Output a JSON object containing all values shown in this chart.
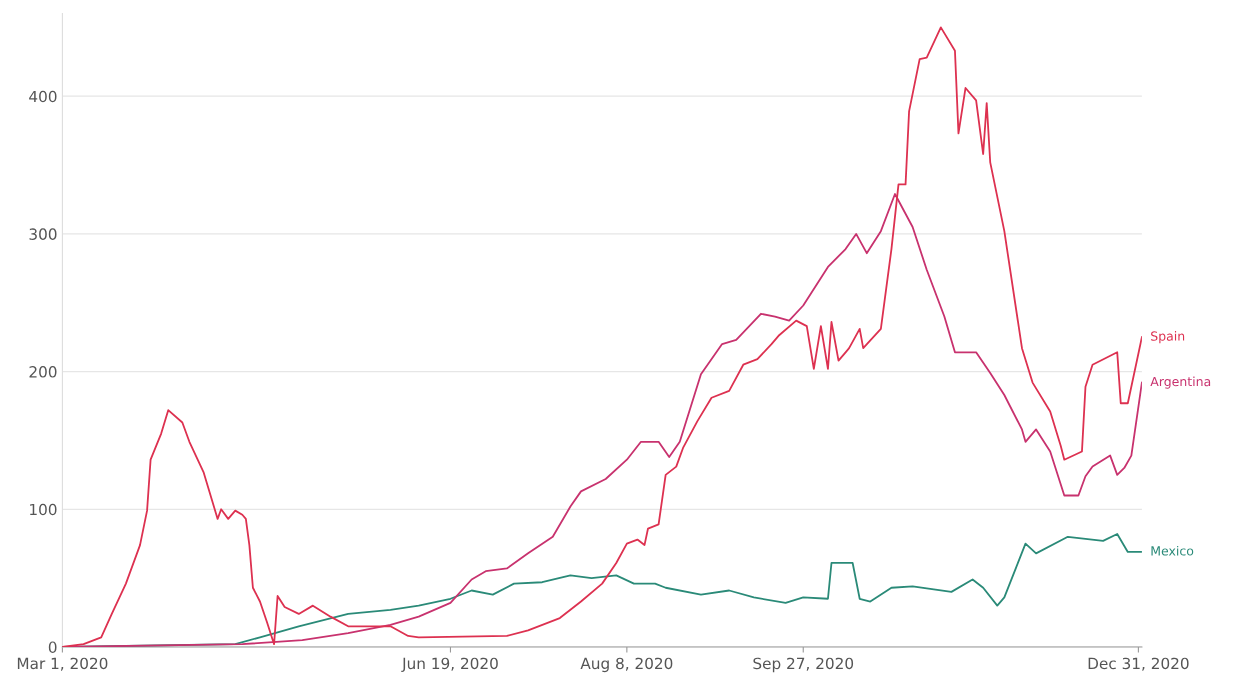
{
  "chart_data": {
    "type": "line",
    "xlim": [
      "2020-03-01",
      "2021-01-01"
    ],
    "ylim": [
      0,
      460
    ],
    "xticks": [
      {
        "value": "2020-03-01",
        "label": "Mar 1, 2020"
      },
      {
        "value": "2020-06-19",
        "label": "Jun 19, 2020"
      },
      {
        "value": "2020-08-08",
        "label": "Aug 8, 2020"
      },
      {
        "value": "2020-09-27",
        "label": "Sep 27, 2020"
      },
      {
        "value": "2020-12-31",
        "label": "Dec 31, 2020"
      }
    ],
    "yticks": [
      0,
      100,
      200,
      300,
      400
    ],
    "grid": "y",
    "legend": false,
    "marker": "none",
    "line_style": "solid",
    "series": [
      {
        "name": "Mexico",
        "color": "#2a8a78",
        "x": [
          "2020-03-01",
          "2020-04-19",
          "2020-04-26",
          "2020-05-07",
          "2020-05-21",
          "2020-06-02",
          "2020-06-10",
          "2020-06-19",
          "2020-06-25",
          "2020-07-01",
          "2020-07-07",
          "2020-07-15",
          "2020-07-23",
          "2020-07-29",
          "2020-08-05",
          "2020-08-10",
          "2020-08-16",
          "2020-08-19",
          "2020-08-29",
          "2020-09-06",
          "2020-09-13",
          "2020-09-22",
          "2020-09-27",
          "2020-10-04",
          "2020-10-05",
          "2020-10-11",
          "2020-10-13",
          "2020-10-16",
          "2020-10-22",
          "2020-10-28",
          "2020-11-08",
          "2020-11-14",
          "2020-11-17",
          "2020-11-21",
          "2020-11-23",
          "2020-11-29",
          "2020-12-02",
          "2020-12-11",
          "2020-12-21",
          "2020-12-25",
          "2020-12-28",
          "2021-01-01"
        ],
        "values": [
          0,
          2,
          7,
          15,
          24,
          27,
          30,
          35,
          41,
          38,
          46,
          47,
          52,
          50,
          52,
          46,
          46,
          43,
          38,
          41,
          36,
          32,
          36,
          35,
          61,
          61,
          35,
          33,
          43,
          44,
          40,
          49,
          43,
          30,
          36,
          75,
          68,
          80,
          77,
          82,
          69,
          69
        ]
      },
      {
        "name": "Argentina",
        "color": "#c8326e",
        "x": [
          "2020-03-01",
          "2020-04-21",
          "2020-05-08",
          "2020-05-21",
          "2020-06-02",
          "2020-06-10",
          "2020-06-19",
          "2020-06-25",
          "2020-06-29",
          "2020-07-05",
          "2020-07-11",
          "2020-07-18",
          "2020-07-23",
          "2020-07-26",
          "2020-08-02",
          "2020-08-08",
          "2020-08-12",
          "2020-08-17",
          "2020-08-20",
          "2020-08-23",
          "2020-08-29",
          "2020-09-04",
          "2020-09-08",
          "2020-09-15",
          "2020-09-19",
          "2020-09-23",
          "2020-09-27",
          "2020-10-04",
          "2020-10-09",
          "2020-10-12",
          "2020-10-15",
          "2020-10-19",
          "2020-10-23",
          "2020-10-28",
          "2020-11-01",
          "2020-11-06",
          "2020-11-09",
          "2020-11-15",
          "2020-11-19",
          "2020-11-23",
          "2020-11-28",
          "2020-11-29",
          "2020-12-02",
          "2020-12-06",
          "2020-12-10",
          "2020-12-14",
          "2020-12-16",
          "2020-12-18",
          "2020-12-23",
          "2020-12-25",
          "2020-12-27",
          "2020-12-29",
          "2021-01-01"
        ],
        "values": [
          0,
          2,
          5,
          10,
          16,
          22,
          32,
          49,
          55,
          57,
          68,
          80,
          102,
          113,
          122,
          136,
          149,
          149,
          138,
          149,
          198,
          220,
          223,
          242,
          240,
          237,
          248,
          276,
          289,
          300,
          286,
          302,
          329,
          305,
          274,
          240,
          214,
          214,
          199,
          183,
          158,
          149,
          158,
          142,
          110,
          110,
          124,
          131,
          139,
          125,
          130,
          139,
          192
        ]
      },
      {
        "name": "Spain",
        "color": "#dd3150",
        "x": [
          "2020-03-01",
          "2020-03-07",
          "2020-03-12",
          "2020-03-15",
          "2020-03-19",
          "2020-03-23",
          "2020-03-25",
          "2020-03-26",
          "2020-03-29",
          "2020-03-31",
          "2020-04-04",
          "2020-04-06",
          "2020-04-10",
          "2020-04-14",
          "2020-04-15",
          "2020-04-17",
          "2020-04-19",
          "2020-04-21",
          "2020-04-22",
          "2020-04-23",
          "2020-04-24",
          "2020-04-26",
          "2020-04-28",
          "2020-04-30",
          "2020-05-01",
          "2020-05-03",
          "2020-05-07",
          "2020-05-11",
          "2020-05-16",
          "2020-05-21",
          "2020-05-24",
          "2020-06-02",
          "2020-06-07",
          "2020-06-10",
          "2020-07-05",
          "2020-07-11",
          "2020-07-20",
          "2020-07-26",
          "2020-08-01",
          "2020-08-05",
          "2020-08-08",
          "2020-08-11",
          "2020-08-13",
          "2020-08-14",
          "2020-08-17",
          "2020-08-19",
          "2020-08-22",
          "2020-08-24",
          "2020-08-28",
          "2020-09-01",
          "2020-09-06",
          "2020-09-10",
          "2020-09-14",
          "2020-09-18",
          "2020-09-20",
          "2020-09-25",
          "2020-09-28",
          "2020-09-30",
          "2020-10-02",
          "2020-10-04",
          "2020-10-05",
          "2020-10-07",
          "2020-10-09",
          "2020-10-10",
          "2020-10-13",
          "2020-10-14",
          "2020-10-19",
          "2020-10-22",
          "2020-10-24",
          "2020-10-26",
          "2020-10-27",
          "2020-10-30",
          "2020-11-01",
          "2020-11-05",
          "2020-11-09",
          "2020-11-10",
          "2020-11-12",
          "2020-11-15",
          "2020-11-17",
          "2020-11-18",
          "2020-11-19",
          "2020-11-23",
          "2020-11-28",
          "2020-12-01",
          "2020-12-06",
          "2020-12-09",
          "2020-12-10",
          "2020-12-15",
          "2020-12-16",
          "2020-12-18",
          "2020-12-25",
          "2020-12-26",
          "2020-12-28",
          "2021-01-01"
        ],
        "values": [
          0,
          2,
          7,
          24,
          46,
          74,
          99,
          136,
          155,
          172,
          163,
          149,
          127,
          93,
          100,
          93,
          99,
          96,
          93,
          74,
          43,
          33,
          18,
          2,
          37,
          29,
          24,
          30,
          22,
          15,
          15,
          15,
          8,
          7,
          8,
          12,
          21,
          33,
          46,
          61,
          75,
          78,
          74,
          86,
          89,
          125,
          131,
          145,
          164,
          181,
          186,
          205,
          209,
          220,
          226,
          237,
          233,
          202,
          233,
          202,
          236,
          208,
          214,
          217,
          231,
          217,
          231,
          289,
          336,
          336,
          389,
          427,
          428,
          450,
          433,
          373,
          406,
          397,
          358,
          395,
          352,
          302,
          217,
          192,
          171,
          146,
          136,
          142,
          189,
          205,
          214,
          177,
          177,
          225
        ]
      }
    ]
  }
}
